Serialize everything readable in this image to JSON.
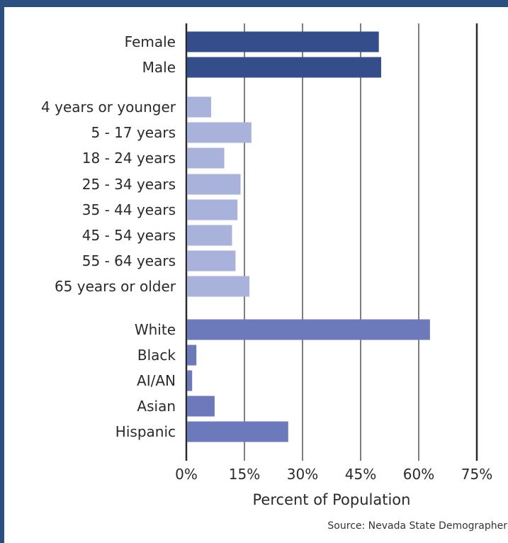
{
  "chart_data": {
    "type": "bar",
    "orientation": "horizontal",
    "categories": [
      "Female",
      "Male",
      "4 years or younger",
      "5 - 17 years",
      "18 - 24 years",
      "25 - 34 years",
      "35 - 44 years",
      "45 - 54 years",
      "55 - 64 years",
      "65 years or older",
      "White",
      "Black",
      "AI/AN",
      "Asian",
      "Hispanic"
    ],
    "values": [
      49.7,
      50.3,
      6.4,
      16.8,
      9.8,
      14.0,
      13.2,
      11.8,
      12.7,
      16.3,
      62.9,
      2.6,
      1.5,
      7.3,
      26.3
    ],
    "groups": [
      {
        "categories": [
          "Female",
          "Male"
        ],
        "color": "#344e8b"
      },
      {
        "categories": [
          "4 years or younger",
          "5 - 17 years",
          "18 - 24 years",
          "25 - 34 years",
          "35 - 44 years",
          "45 - 54 years",
          "55 - 64 years",
          "65 years or older"
        ],
        "color": "#a9b2db"
      },
      {
        "categories": [
          "White",
          "Black",
          "AI/AN",
          "Asian",
          "Hispanic"
        ],
        "color": "#6c79bb"
      }
    ],
    "x_ticks": [
      "0%",
      "15%",
      "30%",
      "45%",
      "60%",
      "75%"
    ],
    "xlim": [
      0,
      75
    ],
    "xlabel": "Percent of Population",
    "ylabel": "",
    "title": "",
    "grid": "vertical",
    "source": "Source: Nevada State Demographer"
  }
}
